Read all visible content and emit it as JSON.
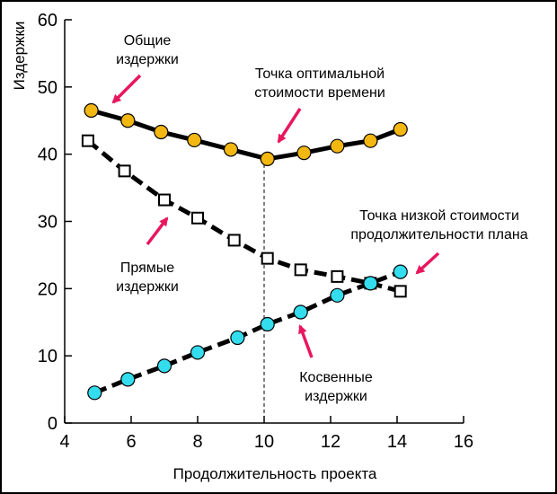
{
  "chart_data": {
    "type": "line",
    "xlabel": "Продолжительность проекта",
    "ylabel": "Издержки",
    "xlim": [
      4,
      16
    ],
    "ylim": [
      0,
      60
    ],
    "xticks": [
      "4",
      "6",
      "8",
      "10",
      "12",
      "14",
      "16"
    ],
    "yticks": [
      "0",
      "10",
      "20",
      "30",
      "40",
      "50",
      "60"
    ],
    "grid": false,
    "series": [
      {
        "name": "Общие издержки",
        "marker": "circle",
        "color": "#F2B711",
        "x": [
          4.8,
          5.9,
          6.9,
          7.9,
          9.0,
          10.1,
          11.2,
          12.2,
          13.2,
          14.1
        ],
        "y": [
          46.5,
          45.0,
          43.3,
          42.1,
          40.7,
          39.3,
          40.2,
          41.2,
          42.0,
          43.7
        ]
      },
      {
        "name": "Прямые издержки",
        "marker": "square",
        "color": "#FFFFFF",
        "x": [
          4.7,
          5.8,
          7.0,
          8.0,
          9.1,
          10.1,
          11.1,
          12.2,
          13.2,
          14.1
        ],
        "y": [
          42.0,
          37.5,
          33.2,
          30.5,
          27.2,
          24.5,
          22.8,
          21.8,
          20.8,
          19.6
        ]
      },
      {
        "name": "Косвенные издержки",
        "marker": "circle",
        "color": "#33DDEE",
        "x": [
          4.9,
          5.9,
          7.0,
          8.0,
          9.2,
          10.1,
          11.1,
          12.2,
          13.2,
          14.1
        ],
        "y": [
          4.5,
          6.5,
          8.5,
          10.5,
          12.7,
          14.7,
          16.5,
          19.0,
          20.8,
          22.5
        ]
      }
    ],
    "reference_line": {
      "x": 10,
      "style": "dashed"
    },
    "annotations": [
      {
        "text_lines": [
          "Общие",
          "издержки"
        ]
      },
      {
        "text_lines": [
          "Точка оптимальной",
          "стоимости времени"
        ]
      },
      {
        "text_lines": [
          "Точка низкой стоимости",
          "продолжительности плана"
        ]
      },
      {
        "text_lines": [
          "Прямые",
          "издержки"
        ]
      },
      {
        "text_lines": [
          "Косвенные",
          "издержки"
        ]
      }
    ],
    "arrow_color": "#E8175D"
  }
}
